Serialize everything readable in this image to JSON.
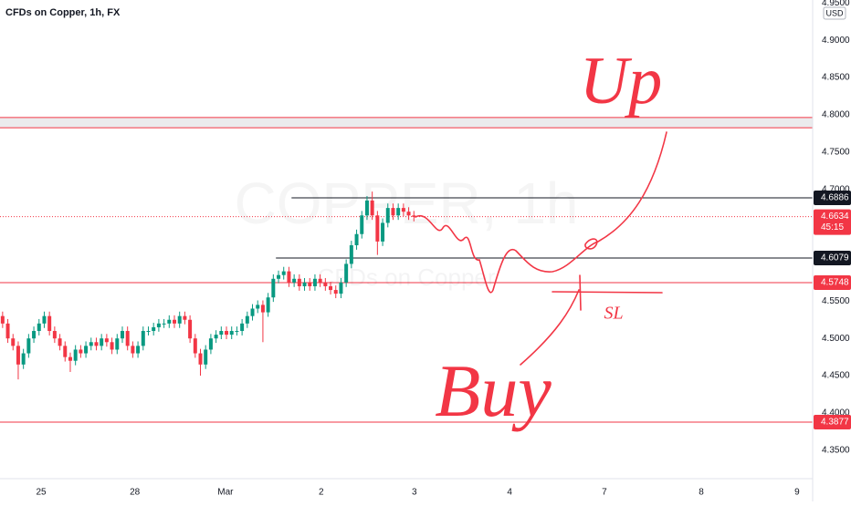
{
  "chart_data": {
    "type": "candlestick",
    "title": "CFDs on Copper, 1h, FX",
    "watermark": "COPPER, 1h",
    "watermark_subtitle": "CFDs on Copper",
    "currency": "USD",
    "up_color": "#089981",
    "down_color": "#f23645",
    "open": [
      4.53,
      4.52,
      4.5,
      4.49,
      4.465,
      4.48,
      4.5,
      4.51,
      4.52,
      4.53,
      4.51,
      4.5,
      4.49,
      4.475,
      4.47,
      4.485,
      4.48,
      4.49,
      4.495,
      4.49,
      4.5,
      4.495,
      4.485,
      4.5,
      4.51,
      4.49,
      4.48,
      4.49,
      4.51,
      4.51,
      4.515,
      4.52,
      4.52,
      4.525,
      4.52,
      4.53,
      4.525,
      4.5,
      4.48,
      4.465,
      4.485,
      4.5,
      4.505,
      4.51,
      4.505,
      4.51,
      4.51,
      4.52,
      4.53,
      4.54,
      4.545,
      4.535,
      4.555,
      4.58,
      4.585,
      4.59,
      4.575,
      4.58,
      4.57,
      4.575,
      4.57,
      4.58,
      4.575,
      4.57,
      4.565,
      4.56,
      4.575,
      4.6,
      4.625,
      4.64,
      4.665,
      4.685,
      4.665,
      4.63,
      4.655,
      4.675,
      4.665,
      4.675,
      4.67,
      4.665
    ],
    "high": [
      4.536,
      4.526,
      4.506,
      4.496,
      4.486,
      4.506,
      4.516,
      4.526,
      4.536,
      4.536,
      4.516,
      4.506,
      4.496,
      4.481,
      4.491,
      4.491,
      4.496,
      4.501,
      4.501,
      4.506,
      4.506,
      4.501,
      4.506,
      4.516,
      4.516,
      4.496,
      4.496,
      4.516,
      4.516,
      4.521,
      4.526,
      4.526,
      4.531,
      4.531,
      4.536,
      4.536,
      4.531,
      4.506,
      4.486,
      4.491,
      4.506,
      4.511,
      4.516,
      4.516,
      4.516,
      4.516,
      4.526,
      4.536,
      4.546,
      4.551,
      4.551,
      4.561,
      4.586,
      4.591,
      4.596,
      4.596,
      4.586,
      4.586,
      4.581,
      4.581,
      4.586,
      4.586,
      4.581,
      4.576,
      4.571,
      4.581,
      4.606,
      4.631,
      4.646,
      4.671,
      4.691,
      4.697,
      4.671,
      4.661,
      4.681,
      4.681,
      4.681,
      4.681,
      4.676,
      4.671
    ],
    "low": [
      4.514,
      4.494,
      4.484,
      4.445,
      4.459,
      4.474,
      4.494,
      4.504,
      4.514,
      4.504,
      4.494,
      4.484,
      4.469,
      4.455,
      4.464,
      4.474,
      4.474,
      4.484,
      4.484,
      4.484,
      4.489,
      4.479,
      4.479,
      4.494,
      4.484,
      4.474,
      4.474,
      4.484,
      4.504,
      4.504,
      4.509,
      4.514,
      4.514,
      4.514,
      4.514,
      4.519,
      4.494,
      4.474,
      4.45,
      4.459,
      4.479,
      4.494,
      4.499,
      4.499,
      4.499,
      4.504,
      4.504,
      4.514,
      4.524,
      4.534,
      4.495,
      4.529,
      4.549,
      4.574,
      4.579,
      4.569,
      4.569,
      4.564,
      4.564,
      4.564,
      4.564,
      4.569,
      4.564,
      4.559,
      4.554,
      4.554,
      4.569,
      4.594,
      4.619,
      4.634,
      4.659,
      4.659,
      4.612,
      4.624,
      4.649,
      4.659,
      4.659,
      4.664,
      4.659,
      4.657
    ],
    "close": [
      4.52,
      4.5,
      4.49,
      4.465,
      4.48,
      4.5,
      4.51,
      4.52,
      4.53,
      4.51,
      4.5,
      4.49,
      4.475,
      4.47,
      4.485,
      4.48,
      4.49,
      4.495,
      4.49,
      4.5,
      4.495,
      4.485,
      4.5,
      4.51,
      4.49,
      4.48,
      4.49,
      4.51,
      4.51,
      4.515,
      4.52,
      4.52,
      4.525,
      4.52,
      4.53,
      4.525,
      4.5,
      4.48,
      4.465,
      4.485,
      4.5,
      4.505,
      4.51,
      4.505,
      4.51,
      4.51,
      4.52,
      4.53,
      4.54,
      4.545,
      4.535,
      4.555,
      4.58,
      4.585,
      4.59,
      4.575,
      4.58,
      4.57,
      4.575,
      4.57,
      4.58,
      4.575,
      4.57,
      4.565,
      4.56,
      4.575,
      4.6,
      4.625,
      4.64,
      4.665,
      4.685,
      4.665,
      4.63,
      4.655,
      4.675,
      4.665,
      4.675,
      4.67,
      4.665,
      4.663
    ],
    "xlim": [
      -0.5,
      155.6
    ],
    "xticks": [
      {
        "value": 7.4,
        "label": "25"
      },
      {
        "value": 25.4,
        "label": "28"
      },
      {
        "value": 42.8,
        "label": "Mar"
      },
      {
        "value": 61.2,
        "label": "2"
      },
      {
        "value": 79.1,
        "label": "3"
      },
      {
        "value": 97.4,
        "label": "4"
      },
      {
        "value": 115.6,
        "label": "7"
      },
      {
        "value": 134.2,
        "label": "8"
      },
      {
        "value": 152.6,
        "label": "9"
      }
    ],
    "ylim": [
      4.318,
      4.954
    ],
    "yticks": [
      {
        "value": 4.95,
        "label": "4.9500"
      },
      {
        "value": 4.9,
        "label": "4.9000"
      },
      {
        "value": 4.85,
        "label": "4.8500"
      },
      {
        "value": 4.8,
        "label": "4.8000"
      },
      {
        "value": 4.75,
        "label": "4.7500"
      },
      {
        "value": 4.7,
        "label": "4.7000"
      },
      {
        "value": 4.55,
        "label": "4.5500"
      },
      {
        "value": 4.5,
        "label": "4.5000"
      },
      {
        "value": 4.45,
        "label": "4.4500"
      },
      {
        "value": 4.4,
        "label": "4.4000"
      },
      {
        "value": 4.35,
        "label": "4.3500"
      }
    ],
    "zone": {
      "from": 4.7826,
      "to": 4.7964,
      "color": "#f23645"
    },
    "price_lines": [
      {
        "value": 4.6886,
        "color": "#131722",
        "start": 55.5
      },
      {
        "value": 4.6079,
        "color": "#131722",
        "start": 52.5
      },
      {
        "value": 4.5748,
        "color": "#f23645",
        "start": -0.5
      },
      {
        "value": 4.3877,
        "color": "#f23645",
        "start": -0.5
      }
    ],
    "current_price": {
      "value": 4.6634,
      "countdown": "45:15",
      "color": "#f23645"
    },
    "annotations": [
      "Up",
      "SL",
      "Buy"
    ]
  }
}
